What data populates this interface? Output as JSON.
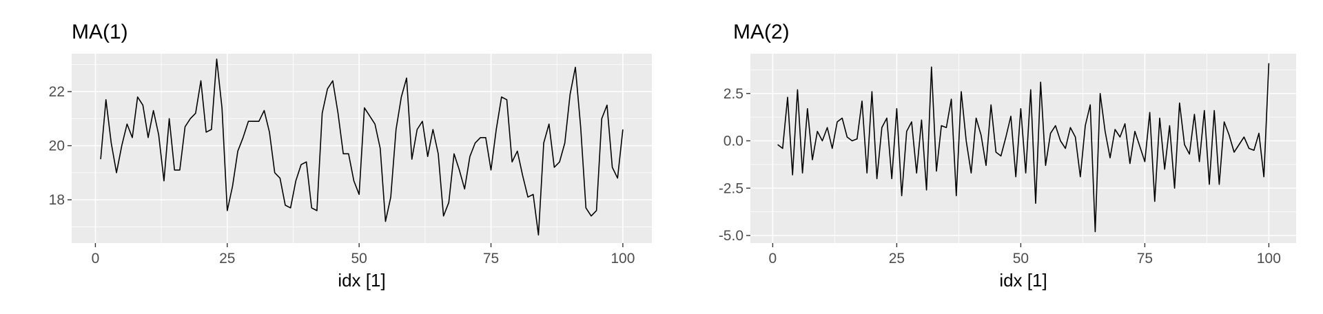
{
  "chart_data": [
    {
      "type": "line",
      "title": "MA(1)",
      "xlabel": "idx [1]",
      "ylabel": "",
      "xlim": [
        -4.5,
        105.5
      ],
      "ylim": [
        16.4,
        23.4
      ],
      "xticks": [
        0,
        25,
        50,
        75,
        100
      ],
      "xtick_labels": [
        "0",
        "25",
        "50",
        "75",
        "100"
      ],
      "yticks": [
        18,
        20,
        22
      ],
      "ytick_labels": [
        "18",
        "20",
        "22"
      ],
      "grid": true,
      "legend": "none",
      "series": [
        {
          "color": "#000000",
          "x": [
            1,
            2,
            3,
            4,
            5,
            6,
            7,
            8,
            9,
            10,
            11,
            12,
            13,
            14,
            15,
            16,
            17,
            18,
            19,
            20,
            21,
            22,
            23,
            24,
            25,
            26,
            27,
            28,
            29,
            30,
            31,
            32,
            33,
            34,
            35,
            36,
            37,
            38,
            39,
            40,
            41,
            42,
            43,
            44,
            45,
            46,
            47,
            48,
            49,
            50,
            51,
            52,
            53,
            54,
            55,
            56,
            57,
            58,
            59,
            60,
            61,
            62,
            63,
            64,
            65,
            66,
            67,
            68,
            69,
            70,
            71,
            72,
            73,
            74,
            75,
            76,
            77,
            78,
            79,
            80,
            81,
            82,
            83,
            84,
            85,
            86,
            87,
            88,
            89,
            90,
            91,
            92,
            93,
            94,
            95,
            96,
            97,
            98,
            99,
            100
          ],
          "values": [
            19.5,
            21.7,
            20.1,
            19.0,
            20.0,
            20.8,
            20.3,
            21.8,
            21.5,
            20.3,
            21.3,
            20.4,
            18.7,
            21.0,
            19.1,
            19.1,
            20.7,
            21.0,
            21.2,
            22.4,
            20.5,
            20.6,
            23.2,
            21.4,
            17.6,
            18.5,
            19.8,
            20.3,
            20.9,
            20.9,
            20.9,
            21.3,
            20.5,
            19.0,
            18.8,
            17.8,
            17.7,
            18.7,
            19.3,
            19.4,
            17.7,
            17.6,
            21.2,
            22.1,
            22.4,
            21.2,
            19.7,
            19.7,
            18.7,
            18.2,
            21.4,
            21.1,
            20.8,
            19.9,
            17.2,
            18.1,
            20.6,
            21.8,
            22.5,
            19.5,
            20.6,
            20.9,
            19.6,
            20.6,
            19.7,
            17.4,
            17.9,
            19.7,
            19.1,
            18.4,
            19.6,
            20.1,
            20.3,
            20.3,
            19.1,
            20.6,
            21.8,
            21.7,
            19.4,
            19.8,
            18.9,
            18.1,
            18.2,
            16.7,
            20.1,
            20.8,
            19.2,
            19.4,
            20.1,
            21.9,
            22.9,
            20.7,
            17.7,
            17.4,
            17.6,
            21.0,
            21.5,
            19.2,
            18.8,
            20.6
          ]
        }
      ]
    },
    {
      "type": "line",
      "title": "MA(2)",
      "xlabel": "idx [1]",
      "ylabel": "",
      "xlim": [
        -4.5,
        105.5
      ],
      "ylim": [
        -5.4,
        4.6
      ],
      "xticks": [
        0,
        25,
        50,
        75,
        100
      ],
      "xtick_labels": [
        "0",
        "25",
        "50",
        "75",
        "100"
      ],
      "yticks": [
        -5,
        -2.5,
        0,
        2.5
      ],
      "ytick_labels": [
        "-5.0",
        "-2.5",
        "0.0",
        "2.5"
      ],
      "grid": true,
      "legend": "none",
      "series": [
        {
          "color": "#000000",
          "x": [
            1,
            2,
            3,
            4,
            5,
            6,
            7,
            8,
            9,
            10,
            11,
            12,
            13,
            14,
            15,
            16,
            17,
            18,
            19,
            20,
            21,
            22,
            23,
            24,
            25,
            26,
            27,
            28,
            29,
            30,
            31,
            32,
            33,
            34,
            35,
            36,
            37,
            38,
            39,
            40,
            41,
            42,
            43,
            44,
            45,
            46,
            47,
            48,
            49,
            50,
            51,
            52,
            53,
            54,
            55,
            56,
            57,
            58,
            59,
            60,
            61,
            62,
            63,
            64,
            65,
            66,
            67,
            68,
            69,
            70,
            71,
            72,
            73,
            74,
            75,
            76,
            77,
            78,
            79,
            80,
            81,
            82,
            83,
            84,
            85,
            86,
            87,
            88,
            89,
            90,
            91,
            92,
            93,
            94,
            95,
            96,
            97,
            98,
            99,
            100
          ],
          "values": [
            -0.2,
            -0.4,
            2.3,
            -1.8,
            2.7,
            -1.7,
            1.7,
            -1.0,
            0.5,
            0.0,
            0.7,
            -0.4,
            1.0,
            1.2,
            0.2,
            0.0,
            0.1,
            2.1,
            -1.7,
            2.6,
            -2.0,
            0.7,
            1.2,
            -2.0,
            1.7,
            -2.9,
            0.5,
            1.0,
            -1.7,
            1.1,
            -2.6,
            3.9,
            -1.6,
            0.8,
            0.7,
            2.2,
            -2.9,
            2.6,
            0.0,
            -1.7,
            1.2,
            0.3,
            -1.3,
            1.9,
            -0.6,
            -0.8,
            0.2,
            1.3,
            -1.9,
            1.7,
            -1.7,
            2.7,
            -3.3,
            3.1,
            -1.3,
            0.4,
            0.8,
            0.0,
            -0.4,
            0.7,
            0.2,
            -1.9,
            0.8,
            1.9,
            -4.8,
            2.5,
            0.5,
            -0.9,
            0.6,
            0.2,
            0.9,
            -1.2,
            0.5,
            -0.3,
            -1.1,
            1.5,
            -3.2,
            1.2,
            -1.5,
            0.8,
            -2.5,
            2.0,
            -0.2,
            -0.7,
            1.4,
            -1.1,
            1.6,
            -2.3,
            1.6,
            -2.3,
            1.0,
            0.3,
            -0.6,
            -0.2,
            0.2,
            -0.4,
            -0.5,
            0.4,
            -1.9,
            4.1
          ]
        }
      ]
    }
  ]
}
